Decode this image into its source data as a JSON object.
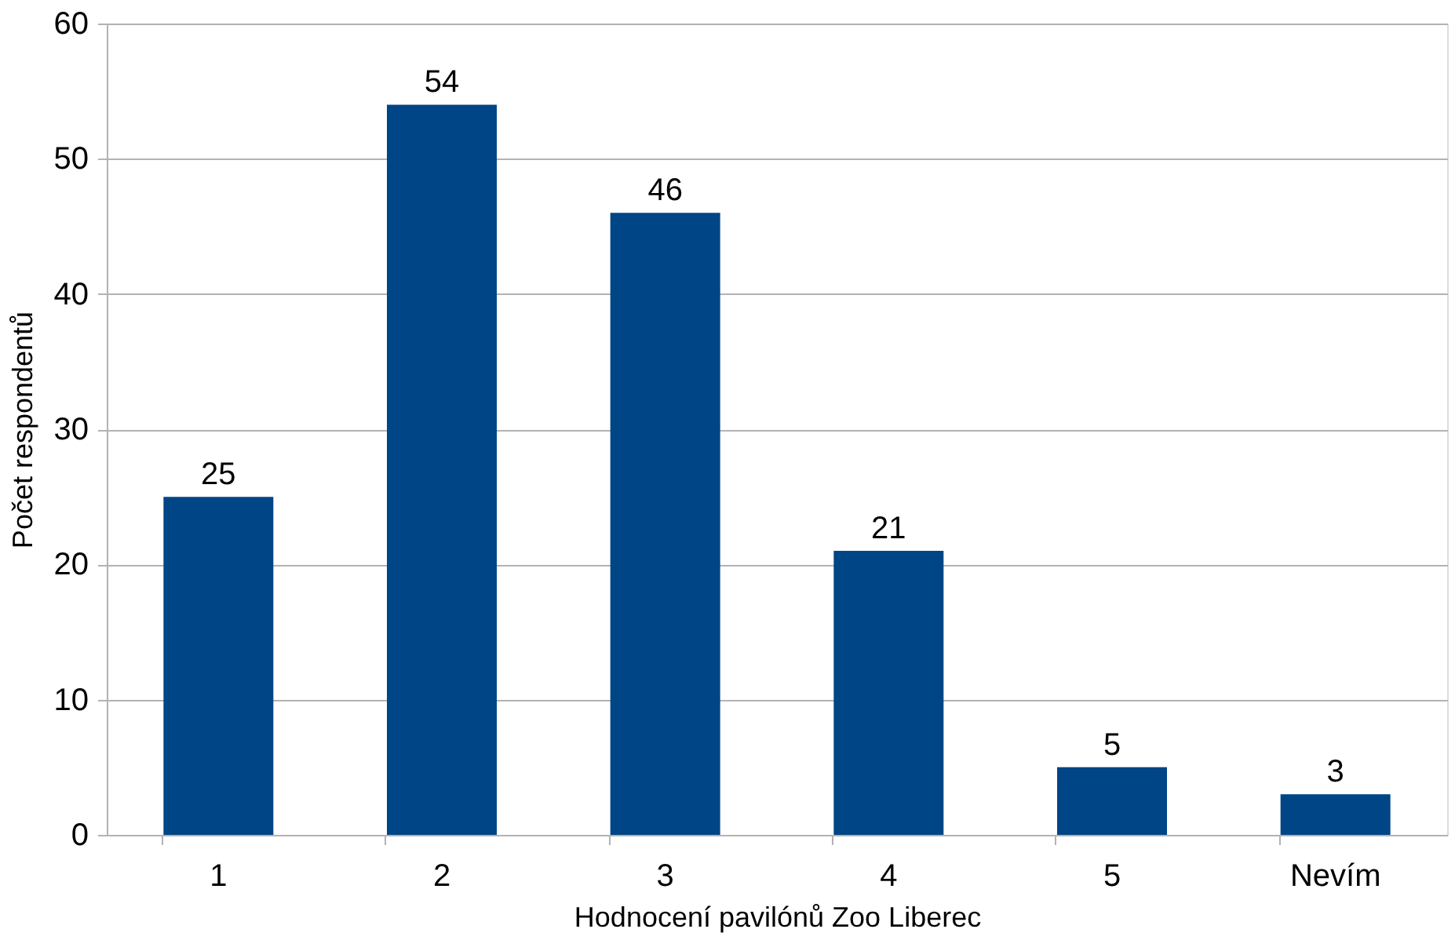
{
  "chart_data": {
    "type": "bar",
    "xlabel": "Hodnocení pavilónů Zoo Liberec",
    "ylabel": "Počet respondentů",
    "categories": [
      "1",
      "2",
      "3",
      "4",
      "5",
      "Nevím"
    ],
    "values": [
      25,
      54,
      46,
      21,
      5,
      3
    ],
    "color": "#004586",
    "ylim": [
      0,
      60
    ],
    "yticks": [
      0,
      10,
      20,
      30,
      40,
      50,
      60
    ],
    "grid": "y",
    "data_labels": true
  }
}
